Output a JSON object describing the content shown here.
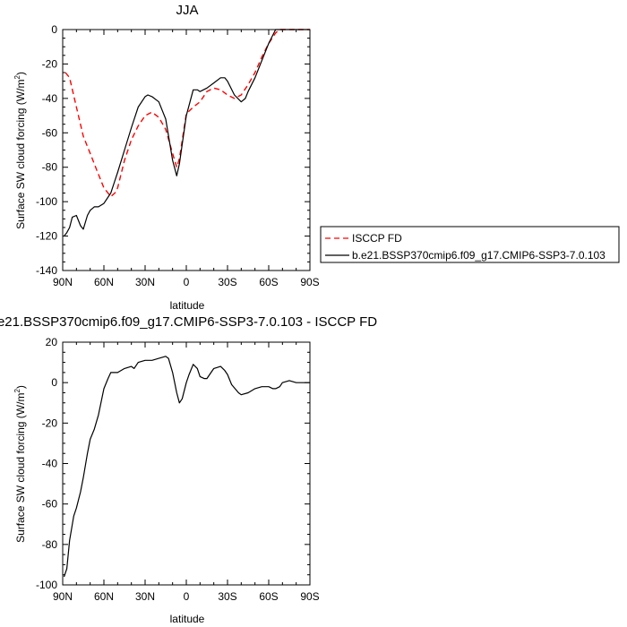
{
  "chart_data": [
    {
      "type": "line",
      "title": "JJA",
      "xlabel": "latitude",
      "ylabel": "Surface SW cloud forcing (W/m",
      "ylabel_sup": "2",
      "ylabel_close": ")",
      "xlim": [
        90,
        -90
      ],
      "ylim": [
        -140,
        0
      ],
      "xticks": [
        {
          "value": 90,
          "label": "90N"
        },
        {
          "value": 60,
          "label": "60N"
        },
        {
          "value": 30,
          "label": "30N"
        },
        {
          "value": 0,
          "label": "0"
        },
        {
          "value": -30,
          "label": "30S"
        },
        {
          "value": -60,
          "label": "60S"
        },
        {
          "value": -90,
          "label": "90S"
        }
      ],
      "yticks": [
        0,
        -20,
        -40,
        -60,
        -80,
        -100,
        -120,
        -140
      ],
      "legend_position": "right",
      "series": [
        {
          "name": "ISCCP FD",
          "color": "#ff0000",
          "dash": "dashed",
          "x": [
            88,
            85,
            80,
            75,
            70,
            65,
            60,
            55,
            52,
            50,
            45,
            40,
            35,
            30,
            25,
            20,
            15,
            10,
            7,
            5,
            0,
            -5,
            -10,
            -15,
            -20,
            -25,
            -30,
            -35,
            -40,
            -45,
            -50,
            -55,
            -60,
            -65,
            -68,
            -70,
            -75,
            -80,
            -85,
            -90
          ],
          "y": [
            -25,
            -28,
            -45,
            -62,
            -72,
            -82,
            -92,
            -97,
            -95,
            -92,
            -76,
            -64,
            -56,
            -50,
            -48,
            -51,
            -58,
            -72,
            -80,
            -75,
            -49,
            -45,
            -42,
            -36,
            -34,
            -35,
            -38,
            -40,
            -38,
            -32,
            -25,
            -16,
            -8,
            -2,
            0,
            0,
            0,
            0,
            0,
            0
          ]
        },
        {
          "name": "b.e21.BSSP370cmip6.f09_g17.CMIP6-SSP3-7.0.103",
          "color": "#000000",
          "dash": "solid",
          "x": [
            89,
            87,
            85,
            83,
            80,
            77,
            75,
            72,
            70,
            67,
            64,
            60,
            55,
            50,
            45,
            40,
            35,
            30,
            28,
            25,
            20,
            15,
            10,
            7,
            5,
            0,
            -5,
            -8,
            -10,
            -15,
            -20,
            -25,
            -28,
            -30,
            -35,
            -40,
            -43,
            -45,
            -50,
            -55,
            -60,
            -65,
            -70,
            -75,
            -80,
            -85,
            -90
          ],
          "y": [
            -120,
            -118,
            -115,
            -109,
            -108,
            -114,
            -116,
            -108,
            -105,
            -103,
            -103,
            -101,
            -95,
            -83,
            -70,
            -57,
            -45,
            -39,
            -38,
            -39,
            -42,
            -52,
            -76,
            -85,
            -78,
            -50,
            -35,
            -35,
            -36,
            -34,
            -31,
            -28,
            -28,
            -30,
            -38,
            -42,
            -40,
            -36,
            -28,
            -18,
            -8,
            0,
            0,
            0,
            0,
            0,
            0
          ]
        }
      ]
    },
    {
      "type": "line",
      "title": "e21.BSSP370cmip6.f09_g17.CMIP6-SSP3-7.0.103 - ISCCP FD",
      "xlabel": "latitude",
      "ylabel": "Surface SW cloud forcing (W/m",
      "ylabel_sup": "2",
      "ylabel_close": ")",
      "xlim": [
        90,
        -90
      ],
      "ylim": [
        -100,
        20
      ],
      "xticks": [
        {
          "value": 90,
          "label": "90N"
        },
        {
          "value": 60,
          "label": "60N"
        },
        {
          "value": 30,
          "label": "30N"
        },
        {
          "value": 0,
          "label": "0"
        },
        {
          "value": -30,
          "label": "30S"
        },
        {
          "value": -60,
          "label": "60S"
        },
        {
          "value": -90,
          "label": "90S"
        }
      ],
      "yticks": [
        20,
        0,
        -20,
        -40,
        -60,
        -80,
        -100
      ],
      "series": [
        {
          "color": "#000000",
          "dash": "solid",
          "x": [
            89,
            87,
            85,
            82,
            80,
            77,
            75,
            72,
            70,
            67,
            64,
            60,
            57,
            55,
            50,
            45,
            40,
            38,
            35,
            30,
            25,
            20,
            15,
            13,
            10,
            7,
            5,
            3,
            0,
            -2,
            -5,
            -8,
            -10,
            -13,
            -15,
            -18,
            -20,
            -25,
            -28,
            -30,
            -33,
            -38,
            -40,
            -45,
            -50,
            -55,
            -60,
            -63,
            -65,
            -68,
            -70,
            -75,
            -80,
            -85,
            -90
          ],
          "y": [
            -96,
            -92,
            -78,
            -66,
            -62,
            -54,
            -47,
            -35,
            -28,
            -23,
            -16,
            -3,
            2,
            5,
            5,
            7,
            8,
            7,
            10,
            11,
            11,
            12,
            13,
            12,
            5,
            -5,
            -10,
            -8,
            0,
            4,
            9,
            7,
            3,
            2,
            2,
            5,
            7,
            8,
            6,
            4,
            -1,
            -5,
            -6,
            -5,
            -3,
            -2,
            -2,
            -3,
            -3,
            -2,
            0,
            1,
            0,
            0,
            0
          ]
        }
      ]
    }
  ]
}
